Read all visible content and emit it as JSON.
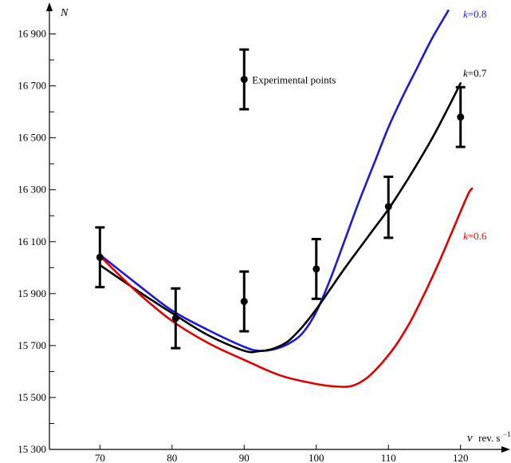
{
  "chart_data": {
    "type": "line",
    "title": "",
    "xlabel_symbol": "ν",
    "xlabel_unit": "rev. s",
    "xlabel_unit_sup": "−1",
    "ylabel": "N",
    "xlim": [
      63,
      126
    ],
    "ylim": [
      15300,
      17000
    ],
    "x_ticks": [
      70,
      80,
      90,
      100,
      110,
      120
    ],
    "x_tick_labels": [
      "70",
      "80",
      "90",
      "100",
      "110",
      "120"
    ],
    "y_ticks": [
      15300,
      15500,
      15700,
      15900,
      16100,
      16300,
      16500,
      16700,
      16900
    ],
    "y_tick_labels": [
      "15 300",
      "15 500",
      "15 700",
      "15 900",
      "16 100",
      "16 300",
      "16 500",
      "16 700",
      "16 900"
    ],
    "y_minor_ticks": [
      15400,
      15600,
      15800,
      16000,
      16200,
      16400,
      16600,
      16800
    ],
    "grid": false,
    "series": [
      {
        "name": "k=0.8",
        "label_k": "k",
        "label_value": "=0.8",
        "color": "#1a1ad6",
        "points": [
          [
            70,
            16050
          ],
          [
            75,
            15940
          ],
          [
            80,
            15835
          ],
          [
            85,
            15760
          ],
          [
            90,
            15695
          ],
          [
            92,
            15680
          ],
          [
            94,
            15685
          ],
          [
            96,
            15705
          ],
          [
            98,
            15745
          ],
          [
            100,
            15830
          ],
          [
            102,
            15960
          ],
          [
            104,
            16110
          ],
          [
            106,
            16260
          ],
          [
            108,
            16400
          ],
          [
            110,
            16540
          ],
          [
            112,
            16660
          ],
          [
            114,
            16770
          ],
          [
            116,
            16880
          ],
          [
            118.3,
            16990
          ]
        ]
      },
      {
        "name": "k=0.7",
        "label_k": "k",
        "label_value": "=0.7",
        "color": "#000000",
        "points": [
          [
            70,
            16010
          ],
          [
            75,
            15915
          ],
          [
            80,
            15825
          ],
          [
            85,
            15740
          ],
          [
            90,
            15680
          ],
          [
            92,
            15678
          ],
          [
            94,
            15688
          ],
          [
            96,
            15715
          ],
          [
            98,
            15770
          ],
          [
            100,
            15840
          ],
          [
            102,
            15920
          ],
          [
            104,
            16000
          ],
          [
            106,
            16075
          ],
          [
            108,
            16150
          ],
          [
            110,
            16225
          ],
          [
            112,
            16310
          ],
          [
            114,
            16400
          ],
          [
            116,
            16495
          ],
          [
            118,
            16600
          ],
          [
            120,
            16710
          ]
        ]
      },
      {
        "name": "k=0.6",
        "label_k": "k",
        "label_value": "=0.6",
        "color": "#e00000",
        "points": [
          [
            70,
            16045
          ],
          [
            75,
            15910
          ],
          [
            80,
            15795
          ],
          [
            85,
            15710
          ],
          [
            90,
            15645
          ],
          [
            95,
            15585
          ],
          [
            100,
            15552
          ],
          [
            103,
            15542
          ],
          [
            105,
            15545
          ],
          [
            107,
            15575
          ],
          [
            109,
            15630
          ],
          [
            111,
            15700
          ],
          [
            113,
            15790
          ],
          [
            115,
            15900
          ],
          [
            117,
            16020
          ],
          [
            119,
            16150
          ],
          [
            121,
            16280
          ],
          [
            121.6,
            16305
          ]
        ]
      }
    ],
    "experimental_points": [
      {
        "x": 70,
        "y": 16040,
        "err_low": 15925,
        "err_high": 16155
      },
      {
        "x": 80.5,
        "y": 15805,
        "err_low": 15690,
        "err_high": 15920
      },
      {
        "x": 90,
        "y": 15870,
        "err_low": 15755,
        "err_high": 15985
      },
      {
        "x": 100,
        "y": 15995,
        "err_low": 15880,
        "err_high": 16110
      },
      {
        "x": 110,
        "y": 16235,
        "err_low": 16115,
        "err_high": 16350
      },
      {
        "x": 120,
        "y": 16580,
        "err_low": 16465,
        "err_high": 16695
      }
    ],
    "legend": {
      "label": "Experimental points",
      "sample_x": 90,
      "sample_y": 16725,
      "sample_err_low": 16610,
      "sample_err_high": 16840
    }
  }
}
